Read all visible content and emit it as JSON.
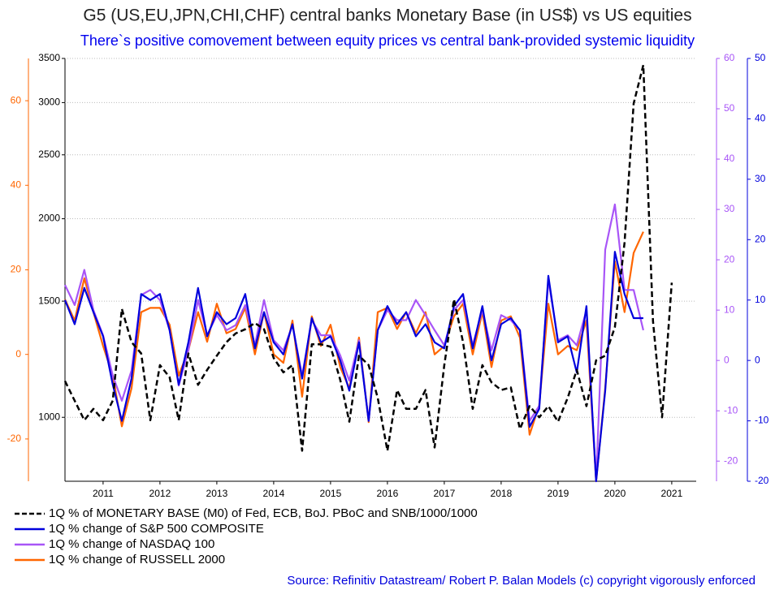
{
  "chart_data": {
    "type": "line",
    "title": "G5 (US,EU,JPN,CHI,CHF) central banks Monetary Base (in US$) vs US equities",
    "subtitle": "There`s positive comovement between equity prices vs central bank-provided systemic liquidity",
    "source": "Source: Refinitiv Datastream/ Robert P. Balan Models (c) copyright vigorously enforced",
    "x": [
      2010.83,
      2011,
      2011.17,
      2011.33,
      2011.5,
      2011.67,
      2011.83,
      2012,
      2012.17,
      2012.33,
      2012.5,
      2012.67,
      2012.83,
      2013,
      2013.17,
      2013.33,
      2013.5,
      2013.67,
      2013.83,
      2014,
      2014.17,
      2014.33,
      2014.5,
      2014.67,
      2014.83,
      2015,
      2015.17,
      2015.33,
      2015.5,
      2015.67,
      2015.83,
      2016,
      2016.17,
      2016.33,
      2016.5,
      2016.67,
      2016.83,
      2017,
      2017.17,
      2017.33,
      2017.5,
      2017.67,
      2017.83,
      2018,
      2018.17,
      2018.33,
      2018.5,
      2018.67,
      2018.83,
      2019,
      2019.17,
      2019.33,
      2019.5,
      2019.67,
      2019.83,
      2020,
      2020.17,
      2020.33,
      2020.5,
      2020.67,
      2020.83,
      2021,
      2021.17,
      2021.33,
      2021.5
    ],
    "xlim": [
      2010.83,
      2021.93
    ],
    "xticks": [
      {
        "value": 2011.5,
        "label": "2011"
      },
      {
        "value": 2012.5,
        "label": "2012"
      },
      {
        "value": 2013.5,
        "label": "2013"
      },
      {
        "value": 2014.5,
        "label": "2014"
      },
      {
        "value": 2015.5,
        "label": "2015"
      },
      {
        "value": 2016.5,
        "label": "2016"
      },
      {
        "value": 2017.5,
        "label": "2017"
      },
      {
        "value": 2018.5,
        "label": "2018"
      },
      {
        "value": 2019.5,
        "label": "2019"
      },
      {
        "value": 2020.5,
        "label": "2020"
      },
      {
        "value": 2021.5,
        "label": "2021"
      }
    ],
    "ylim": [
      800,
      3500
    ],
    "ylog": true,
    "yticks": [
      1000,
      1500,
      2000,
      2500,
      3000,
      3500
    ],
    "y2lim": [
      -30,
      70
    ],
    "y2ticks": [
      -20,
      0,
      20,
      40,
      60
    ],
    "y3lim": [
      -24,
      60
    ],
    "y3ticks": [
      -20,
      -10,
      0,
      10,
      20,
      30,
      40,
      50,
      60
    ],
    "y4lim": [
      -20,
      50
    ],
    "y4ticks": [
      -20,
      -10,
      0,
      10,
      20,
      30,
      40,
      50
    ],
    "grid": true,
    "series": [
      {
        "name": "1Q % change of RUSSELL 2000",
        "color": "#ff6600",
        "axis": "y2",
        "values": [
          13,
          8,
          18,
          10,
          2,
          -5,
          -17,
          -8,
          10,
          11,
          11,
          7,
          -5,
          1,
          10,
          3,
          12,
          5,
          6,
          11,
          0,
          10,
          0,
          -2,
          8,
          -10,
          9,
          2,
          7,
          -3,
          -8,
          4,
          -16,
          10,
          11,
          6,
          10,
          5,
          10,
          0,
          2,
          9,
          12,
          0,
          10,
          -3,
          8,
          9,
          4,
          -19,
          -12,
          12,
          0,
          2,
          1,
          8,
          -30,
          -8,
          22,
          10,
          24,
          29,
          null,
          null,
          null
        ]
      },
      {
        "name": "1Q % change of NASDAQ 100",
        "color": "#a855f7",
        "axis": "y3",
        "values": [
          15,
          11,
          18,
          10,
          5,
          -3,
          -8,
          -2,
          13,
          14,
          12,
          6,
          -5,
          2,
          12,
          5,
          9,
          6,
          7,
          11,
          3,
          12,
          4,
          2,
          7,
          -3,
          8,
          5,
          5,
          1,
          -4,
          4,
          -12,
          6,
          10,
          8,
          8,
          12,
          9,
          6,
          3,
          10,
          12,
          3,
          10,
          2,
          9,
          8,
          6,
          -12,
          -9,
          16,
          4,
          5,
          3,
          10,
          -24,
          22,
          31,
          14,
          14,
          6,
          null,
          null,
          null
        ]
      },
      {
        "name": "1Q % change of S&P 500 COMPOSITE",
        "color": "#0000dd",
        "axis": "y4",
        "values": [
          10,
          6,
          12,
          8,
          4,
          -4,
          -10,
          -3,
          11,
          10,
          11,
          5,
          -4,
          3,
          12,
          4,
          8,
          6,
          7,
          11,
          2,
          8,
          3,
          1,
          6,
          -3,
          7,
          3,
          4,
          0,
          -5,
          3,
          -10,
          5,
          9,
          6,
          8,
          4,
          6,
          3,
          2,
          9,
          11,
          2,
          9,
          0,
          6,
          7,
          5,
          -11,
          -8,
          14,
          3,
          4,
          -2,
          9,
          -20,
          -5,
          18,
          11,
          7,
          7,
          null,
          null,
          null
        ]
      },
      {
        "name": "1Q % of MONETARY BASE (M0) of Fed, ECB, BoJ. PBoC and SNB/1000/1000",
        "color": "#000000",
        "axis": "y",
        "dashed": true,
        "values": [
          1135,
          1060,
          990,
          1030,
          990,
          1060,
          1460,
          1300,
          1250,
          990,
          1200,
          1150,
          990,
          1250,
          1120,
          1180,
          1240,
          1300,
          1340,
          1360,
          1390,
          1360,
          1230,
          1170,
          1200,
          890,
          1290,
          1290,
          1280,
          1140,
          985,
          1240,
          1200,
          1070,
          890,
          1100,
          1030,
          1030,
          1100,
          900,
          1200,
          1510,
          1300,
          1030,
          1200,
          1130,
          1100,
          1110,
          960,
          1040,
          1000,
          1040,
          985,
          1070,
          1180,
          1040,
          1220,
          1240,
          1370,
          1840,
          2990,
          3420,
          1400,
          1000,
          1600
        ]
      }
    ]
  }
}
